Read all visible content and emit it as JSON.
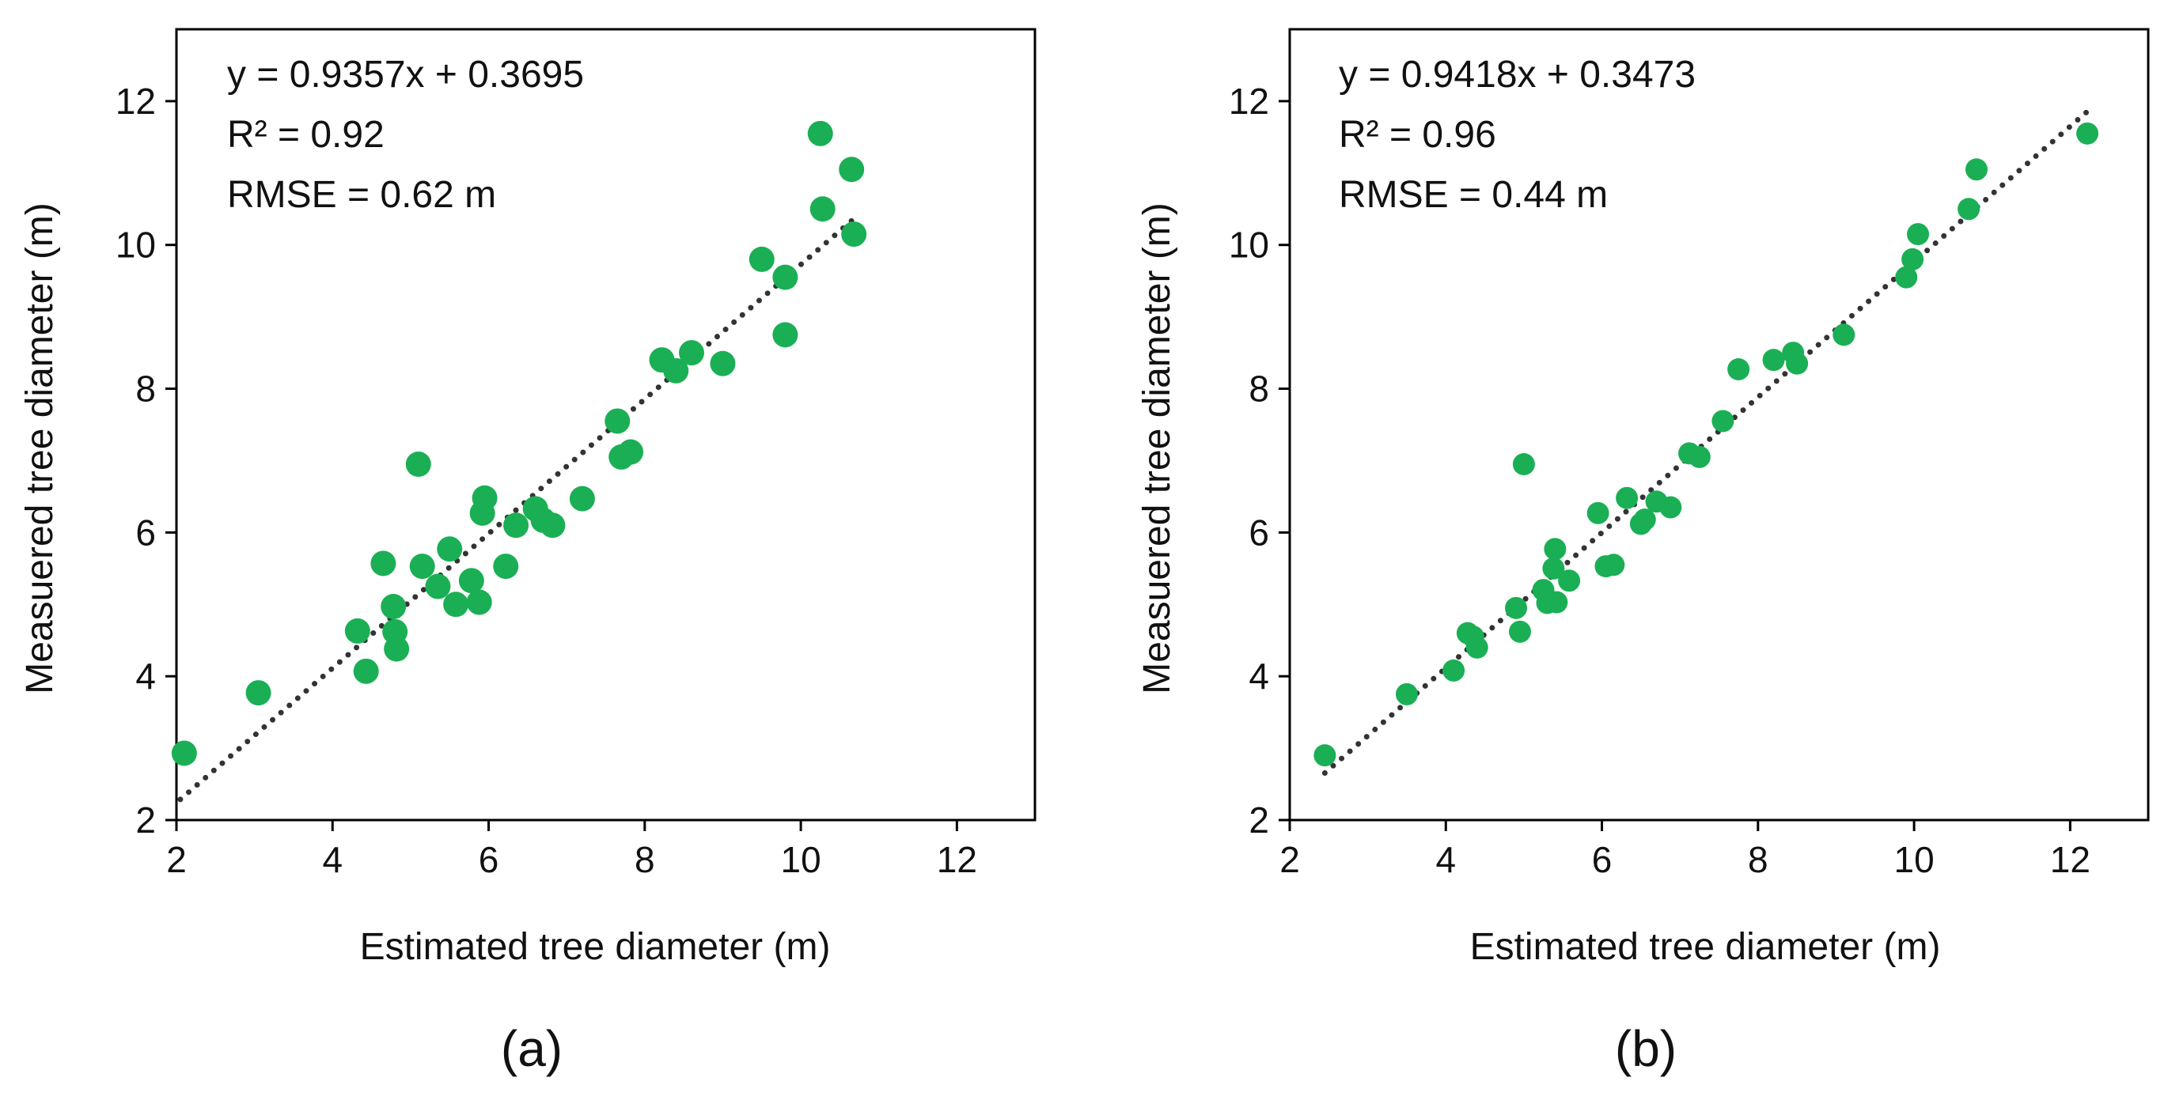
{
  "colors": {
    "point": "#1AAF54",
    "trend": "#333333",
    "axis": "#000000"
  },
  "chart_data": [
    {
      "type": "scatter",
      "panel_label": "(a)",
      "xlabel": "Estimated tree diameter (m)",
      "ylabel": "Measuered tree diameter (m)",
      "xlim": [
        2,
        13
      ],
      "ylim": [
        2,
        13
      ],
      "xticks": [
        "2",
        "4",
        "6",
        "8",
        "10",
        "12"
      ],
      "yticks": [
        "2",
        "4",
        "6",
        "8",
        "10",
        "12"
      ],
      "annotations": [
        "y = 0.9357x + 0.3695",
        "R² = 0.92",
        "RMSE = 0.62 m"
      ],
      "trendline": {
        "slope": 0.9357,
        "intercept": 0.3695,
        "x_range": [
          2.05,
          10.65
        ],
        "style": "dotted"
      },
      "points": [
        [
          2.1,
          2.93
        ],
        [
          3.05,
          3.77
        ],
        [
          4.32,
          4.63
        ],
        [
          4.43,
          4.07
        ],
        [
          4.65,
          5.57
        ],
        [
          4.78,
          4.97
        ],
        [
          4.8,
          4.62
        ],
        [
          4.82,
          4.38
        ],
        [
          5.1,
          6.95
        ],
        [
          5.15,
          5.53
        ],
        [
          5.35,
          5.25
        ],
        [
          5.5,
          5.77
        ],
        [
          5.58,
          5.0
        ],
        [
          5.78,
          5.33
        ],
        [
          5.88,
          5.03
        ],
        [
          5.92,
          6.27
        ],
        [
          5.95,
          6.48
        ],
        [
          6.22,
          5.53
        ],
        [
          6.35,
          6.1
        ],
        [
          6.6,
          6.33
        ],
        [
          6.7,
          6.17
        ],
        [
          6.82,
          6.1
        ],
        [
          7.2,
          6.47
        ],
        [
          7.65,
          7.55
        ],
        [
          7.7,
          7.05
        ],
        [
          7.82,
          7.12
        ],
        [
          8.22,
          8.4
        ],
        [
          8.4,
          8.25
        ],
        [
          8.6,
          8.5
        ],
        [
          9.0,
          8.35
        ],
        [
          9.5,
          9.8
        ],
        [
          9.8,
          9.55
        ],
        [
          9.8,
          8.75
        ],
        [
          10.25,
          11.55
        ],
        [
          10.28,
          10.5
        ],
        [
          10.65,
          11.05
        ],
        [
          10.68,
          10.15
        ]
      ]
    },
    {
      "type": "scatter",
      "panel_label": "(b)",
      "xlabel": "Estimated tree diameter (m)",
      "ylabel": "Measuered tree diameter (m)",
      "xlim": [
        2,
        13
      ],
      "ylim": [
        2,
        13
      ],
      "xticks": [
        "2",
        "4",
        "6",
        "8",
        "10",
        "12"
      ],
      "yticks": [
        "2",
        "4",
        "6",
        "8",
        "10",
        "12"
      ],
      "annotations": [
        "y = 0.9418x + 0.3473",
        "R² = 0.96",
        "RMSE = 0.44 m"
      ],
      "trendline": {
        "slope": 0.9418,
        "intercept": 0.3473,
        "x_range": [
          2.45,
          12.25
        ],
        "style": "dotted"
      },
      "points": [
        [
          2.45,
          2.9
        ],
        [
          3.5,
          3.75
        ],
        [
          4.1,
          4.08
        ],
        [
          4.28,
          4.6
        ],
        [
          4.35,
          4.55
        ],
        [
          4.4,
          4.4
        ],
        [
          4.9,
          4.95
        ],
        [
          4.95,
          4.62
        ],
        [
          5.0,
          6.95
        ],
        [
          5.25,
          5.2
        ],
        [
          5.3,
          5.02
        ],
        [
          5.38,
          5.5
        ],
        [
          5.4,
          5.77
        ],
        [
          5.42,
          5.03
        ],
        [
          5.58,
          5.33
        ],
        [
          5.95,
          6.27
        ],
        [
          6.05,
          5.53
        ],
        [
          6.15,
          5.55
        ],
        [
          6.32,
          6.48
        ],
        [
          6.5,
          6.12
        ],
        [
          6.55,
          6.18
        ],
        [
          6.7,
          6.43
        ],
        [
          6.88,
          6.35
        ],
        [
          7.12,
          7.1
        ],
        [
          7.25,
          7.05
        ],
        [
          7.55,
          7.55
        ],
        [
          7.75,
          8.27
        ],
        [
          8.2,
          8.4
        ],
        [
          8.45,
          8.5
        ],
        [
          8.5,
          8.35
        ],
        [
          9.1,
          8.75
        ],
        [
          9.9,
          9.55
        ],
        [
          9.98,
          9.8
        ],
        [
          10.05,
          10.15
        ],
        [
          10.7,
          10.5
        ],
        [
          10.8,
          11.05
        ],
        [
          12.22,
          11.55
        ]
      ]
    }
  ]
}
